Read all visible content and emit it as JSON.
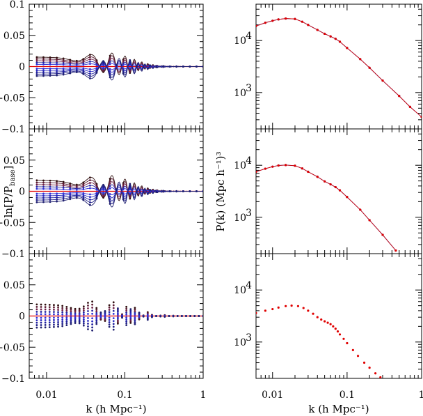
{
  "chart_data": [
    {
      "panel": "left-top",
      "type": "line",
      "xscale": "log",
      "xlim": [
        0.006,
        1.0
      ],
      "ylim": [
        -0.1,
        0.1
      ],
      "yticks": [
        0.1,
        0.05,
        0,
        -0.05,
        -0.1
      ],
      "ytick_labels": [
        "0.1",
        "0.05",
        "0",
        "−0.05",
        "−0.1"
      ],
      "amplitudes": [
        0.031,
        0.025,
        0.019,
        0.013,
        0.007,
        -0.007,
        -0.013,
        -0.019,
        -0.025,
        -0.031
      ],
      "colors": [
        "#301010",
        "#5a1a30",
        "#702048",
        "#2828a0",
        "#3030d8",
        "#3030d8",
        "#2828c0",
        "#2020a0",
        "#202088",
        "#202070"
      ]
    },
    {
      "panel": "left-middle",
      "type": "line",
      "xscale": "log",
      "xlim": [
        0.006,
        1.0
      ],
      "ylim": [
        -0.1,
        0.1
      ],
      "yticks": [
        0.05,
        0,
        -0.05,
        -0.1
      ],
      "ytick_labels": [
        "0.05",
        "0",
        "−0.05",
        "−0.1"
      ],
      "amplitudes": [
        0.036,
        0.029,
        0.022,
        0.015,
        0.008,
        -0.008,
        -0.015,
        -0.022,
        -0.029,
        -0.036
      ],
      "colors": [
        "#301010",
        "#5a1a30",
        "#702048",
        "#2828a0",
        "#3030d8",
        "#3030d8",
        "#2828c0",
        "#2020a0",
        "#202088",
        "#202070"
      ]
    },
    {
      "panel": "left-bottom",
      "type": "scatter",
      "xscale": "log",
      "xlim": [
        0.006,
        1.0
      ],
      "ylim": [
        -0.1,
        0.1
      ],
      "yticks": [
        0.05,
        0,
        -0.05,
        -0.1
      ],
      "ytick_labels": [
        "0.05",
        "0",
        "−0.05",
        "−0.1"
      ],
      "amplitudes": [
        0.038,
        0.03,
        0.022,
        0.014,
        0.006,
        -0.006,
        -0.014,
        -0.022,
        -0.03,
        -0.038
      ],
      "colors": [
        "#301010",
        "#5a1a30",
        "#702048",
        "#2828a0",
        "#3030d8",
        "#3030d8",
        "#2828c0",
        "#2020a0",
        "#202088",
        "#202070"
      ]
    },
    {
      "panel": "right-top",
      "type": "line",
      "xscale": "log",
      "yscale": "log",
      "xlim": [
        0.006,
        1.0
      ],
      "ylim": [
        200,
        50000
      ],
      "x": [
        0.006,
        0.008,
        0.01,
        0.012,
        0.015,
        0.02,
        0.025,
        0.03,
        0.04,
        0.05,
        0.06,
        0.07,
        0.08,
        0.1,
        0.15,
        0.2,
        0.3,
        0.5,
        0.7,
        1.0
      ],
      "y": [
        19000,
        22000,
        24000,
        25500,
        26500,
        26000,
        23000,
        20000,
        16000,
        13500,
        12000,
        10800,
        9500,
        7200,
        4400,
        3000,
        1700,
        860,
        530,
        340
      ]
    },
    {
      "panel": "right-middle",
      "type": "line",
      "xscale": "log",
      "yscale": "log",
      "xlim": [
        0.006,
        1.0
      ],
      "ylim": [
        200,
        50000
      ],
      "x": [
        0.006,
        0.008,
        0.01,
        0.012,
        0.015,
        0.02,
        0.025,
        0.03,
        0.04,
        0.05,
        0.06,
        0.07,
        0.08,
        0.1,
        0.15,
        0.2,
        0.3,
        0.45
      ],
      "y": [
        7500,
        8600,
        9400,
        9900,
        10100,
        9800,
        8700,
        7500,
        6000,
        4900,
        4300,
        3800,
        3300,
        2450,
        1400,
        880,
        460,
        230
      ]
    },
    {
      "panel": "right-bottom",
      "type": "scatter",
      "xscale": "log",
      "yscale": "log",
      "xlim": [
        0.006,
        1.0
      ],
      "ylim": [
        200,
        50000
      ],
      "x": [
        0.006,
        0.008,
        0.01,
        0.012,
        0.015,
        0.018,
        0.022,
        0.026,
        0.03,
        0.035,
        0.04,
        0.045,
        0.05,
        0.055,
        0.06,
        0.065,
        0.07,
        0.075,
        0.08,
        0.09,
        0.1,
        0.12,
        0.14,
        0.17,
        0.2,
        0.24,
        0.28
      ],
      "y": [
        3600,
        4000,
        4300,
        4600,
        4900,
        5000,
        4900,
        4500,
        4000,
        3500,
        3000,
        2700,
        2500,
        2350,
        2200,
        2000,
        1800,
        1600,
        1400,
        1150,
        950,
        700,
        540,
        400,
        320,
        250,
        210
      ]
    }
  ],
  "xtick_labels": [
    "0.01",
    "0.1",
    "1"
  ],
  "right_ytick_labels": [
    "10",
    "4",
    "10",
    "3"
  ],
  "xlabel_left": "k (h Mpc⁻¹)",
  "xlabel_right": "k (h Mpc⁻¹)",
  "ylabel_left": "ln[P/P_base]",
  "ylabel_left_main": "ln[P/P",
  "ylabel_left_sub": "base",
  "ylabel_left_end": "]",
  "ylabel_right": "P(k) (Mpc h⁻¹)³"
}
